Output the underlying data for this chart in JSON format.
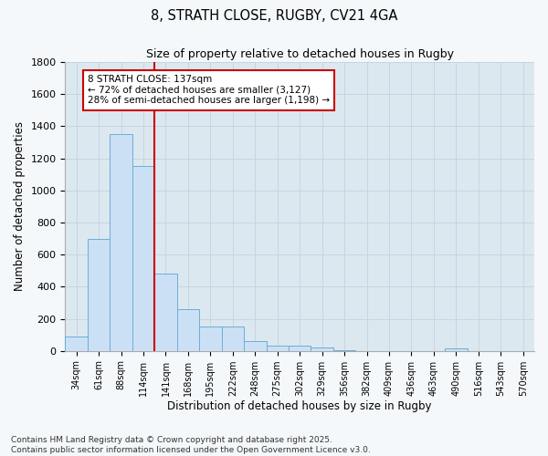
{
  "title": "8, STRATH CLOSE, RUGBY, CV21 4GA",
  "subtitle": "Size of property relative to detached houses in Rugby",
  "xlabel": "Distribution of detached houses by size in Rugby",
  "ylabel": "Number of detached properties",
  "categories": [
    "34sqm",
    "61sqm",
    "88sqm",
    "114sqm",
    "141sqm",
    "168sqm",
    "195sqm",
    "222sqm",
    "248sqm",
    "275sqm",
    "302sqm",
    "329sqm",
    "356sqm",
    "382sqm",
    "409sqm",
    "436sqm",
    "463sqm",
    "490sqm",
    "516sqm",
    "543sqm",
    "570sqm"
  ],
  "values": [
    90,
    700,
    1350,
    1150,
    480,
    260,
    150,
    150,
    60,
    30,
    30,
    20,
    5,
    0,
    0,
    0,
    0,
    15,
    0,
    0,
    0
  ],
  "bar_color": "#cce0f5",
  "bar_edge_color": "#6aaed6",
  "vline_x": 3.5,
  "vline_color": "#cc0000",
  "annotation_text": "8 STRATH CLOSE: 137sqm\n← 72% of detached houses are smaller (3,127)\n28% of semi-detached houses are larger (1,198) →",
  "annotation_box_color": "#ffffff",
  "annotation_box_edge": "#cc0000",
  "ylim": [
    0,
    1800
  ],
  "yticks": [
    0,
    200,
    400,
    600,
    800,
    1000,
    1200,
    1400,
    1600,
    1800
  ],
  "grid_color": "#c8d4e0",
  "plot_bg_color": "#dce8f0",
  "fig_bg_color": "#f5f8fa",
  "footer": "Contains HM Land Registry data © Crown copyright and database right 2025.\nContains public sector information licensed under the Open Government Licence v3.0."
}
